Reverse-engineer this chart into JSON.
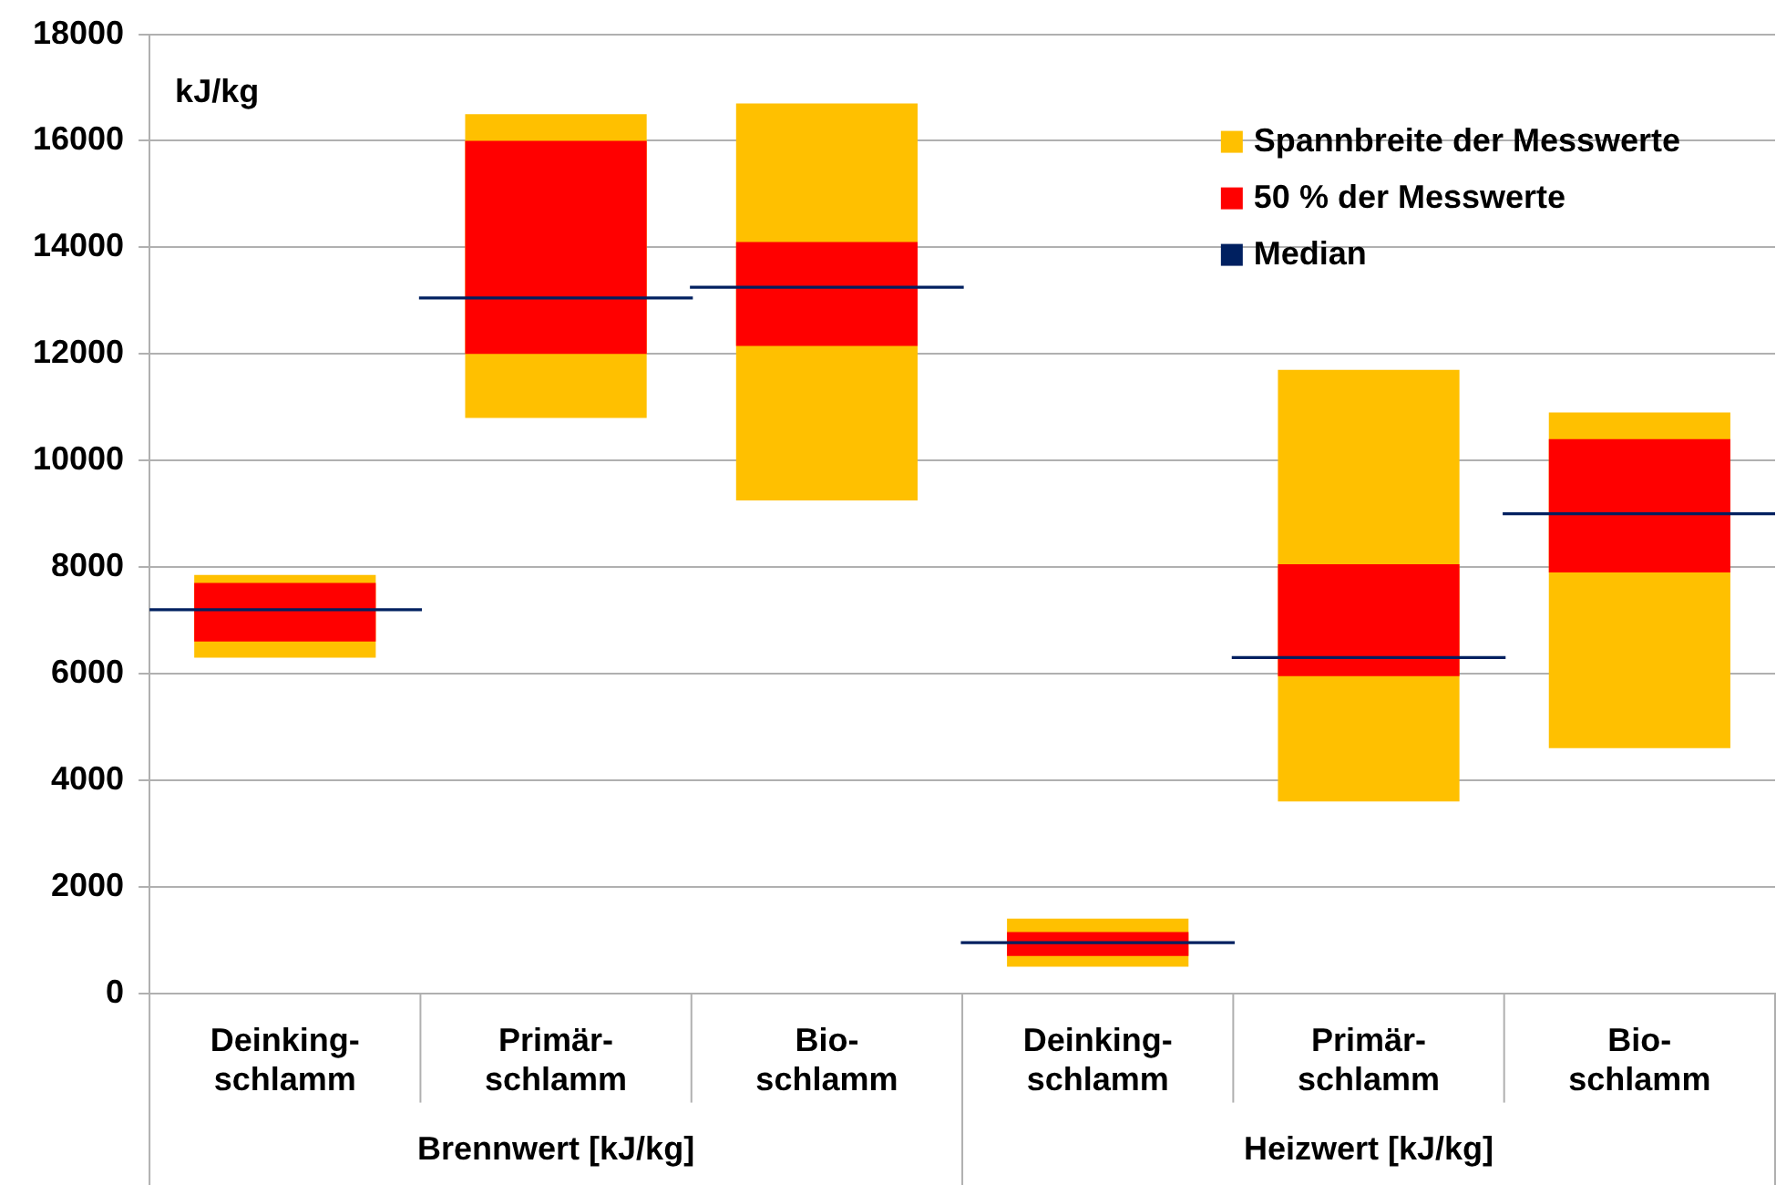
{
  "chart_data": {
    "type": "bar",
    "ylabel": "kJ/kg",
    "categories": [
      "Deinking-\nschlamm",
      "Primär-\nschlamm",
      "Bio-\nschlamm",
      "Deinking-\nschlamm",
      "Primär-\nschlamm",
      "Bio-\nschlamm"
    ],
    "series": [
      {
        "name": "Spannbreite der Messwerte",
        "color": "#ffc000",
        "base": [
          6300,
          10800,
          9250,
          500,
          3600,
          4600
        ],
        "values": [
          1550,
          5700,
          7450,
          900,
          8100,
          6300
        ]
      },
      {
        "name": "50 % der Messwerte",
        "color": "#ff0000",
        "base": [
          6600,
          12000,
          12150,
          700,
          5950,
          7900
        ],
        "values": [
          1100,
          4000,
          1950,
          450,
          2100,
          2500
        ]
      },
      {
        "name": "Median",
        "color": "#002060",
        "base": [
          7200,
          13050,
          13250,
          950,
          6300,
          9000
        ],
        "values": [
          0,
          0,
          0,
          0,
          0,
          0
        ]
      }
    ],
    "ylim": [
      0,
      18000
    ],
    "yticks": [
      0,
      2000,
      4000,
      6000,
      8000,
      10000,
      12000,
      14000,
      16000,
      18000
    ],
    "grid": "y",
    "legend": "top right",
    "annotations": [
      "Brennwert [kJ/kg]",
      "Heizwert [kJ/kg]"
    ]
  }
}
